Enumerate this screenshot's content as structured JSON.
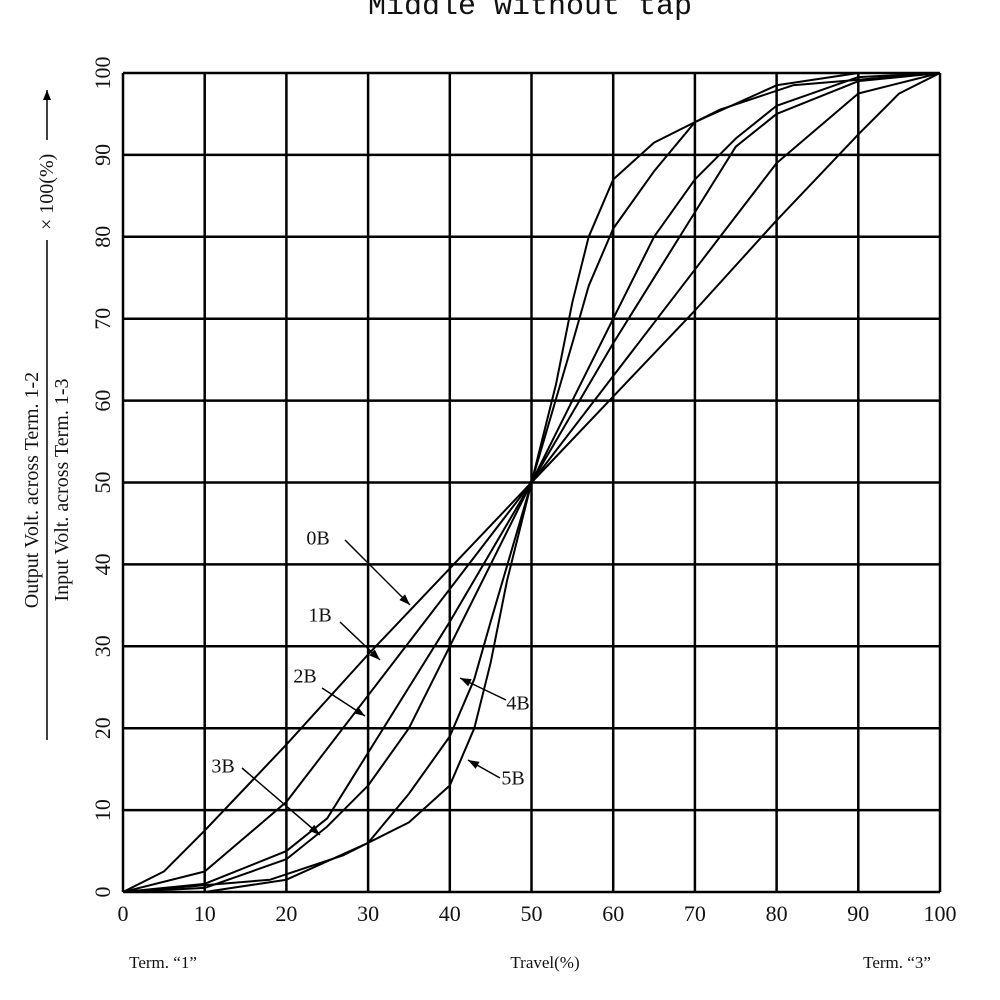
{
  "chart_data": {
    "type": "line",
    "title": "Middle without tap",
    "y_label_numerator": "Output Volt. across Term. 1-2",
    "y_label_denominator": "Input Volt. across Term. 1-3",
    "y_label_factor": "× 100(%)",
    "x_label": "Travel(%)",
    "x_left_label": "Term. “1”",
    "x_right_label": "Term. “3”",
    "xlim": [
      0,
      100
    ],
    "ylim": [
      0,
      100
    ],
    "xticks": [
      0,
      10,
      20,
      30,
      40,
      50,
      60,
      70,
      80,
      90,
      100
    ],
    "yticks": [
      0,
      10,
      20,
      30,
      40,
      50,
      60,
      70,
      80,
      90,
      100
    ],
    "grid": true,
    "series": [
      {
        "name": "0B",
        "color": "#000000",
        "x": [
          0,
          5,
          10,
          20,
          30,
          40,
          50,
          60,
          70,
          80,
          90,
          95,
          100
        ],
        "values": [
          0,
          2.5,
          7.5,
          18,
          29,
          39.5,
          50,
          60.5,
          71,
          82,
          92.5,
          97.5,
          100
        ]
      },
      {
        "name": "1B",
        "color": "#000000",
        "x": [
          0,
          10,
          20,
          30,
          40,
          50,
          60,
          70,
          80,
          90,
          100
        ],
        "values": [
          0,
          2.5,
          11,
          24,
          37,
          50,
          63,
          76,
          89,
          97.5,
          100
        ]
      },
      {
        "name": "2B",
        "color": "#000000",
        "x": [
          0,
          10,
          20,
          25,
          30,
          40,
          50,
          60,
          70,
          75,
          80,
          90,
          100
        ],
        "values": [
          0,
          1,
          5,
          9,
          17,
          33,
          50,
          67,
          83,
          91,
          95,
          99,
          100
        ]
      },
      {
        "name": "3B",
        "color": "#000000",
        "x": [
          0,
          10,
          20,
          25,
          30,
          35,
          40,
          45,
          50,
          55,
          60,
          65,
          70,
          75,
          80,
          90,
          100
        ],
        "values": [
          0,
          0.5,
          4,
          8,
          13,
          20,
          30,
          40,
          50,
          60,
          70,
          80,
          87,
          92,
          96,
          99.5,
          100
        ]
      },
      {
        "name": "4B",
        "color": "#000000",
        "x": [
          0,
          10,
          20,
          30,
          35,
          40,
          43,
          45,
          50,
          55,
          57,
          60,
          65,
          70,
          80,
          90,
          100
        ],
        "values": [
          0,
          0,
          1.5,
          6,
          12,
          19,
          26,
          33,
          50,
          67,
          74,
          81,
          88,
          94,
          98.5,
          100,
          100
        ]
      },
      {
        "name": "5B",
        "color": "#000000",
        "x": [
          0,
          18,
          27,
          35,
          40,
          43,
          45,
          47,
          50,
          53,
          55,
          57,
          60,
          65,
          73,
          82,
          100
        ],
        "values": [
          0,
          1.5,
          4.5,
          8.5,
          13,
          20,
          28,
          38,
          50,
          62,
          72,
          80,
          87,
          91.5,
          95.5,
          98.5,
          100
        ]
      }
    ]
  }
}
